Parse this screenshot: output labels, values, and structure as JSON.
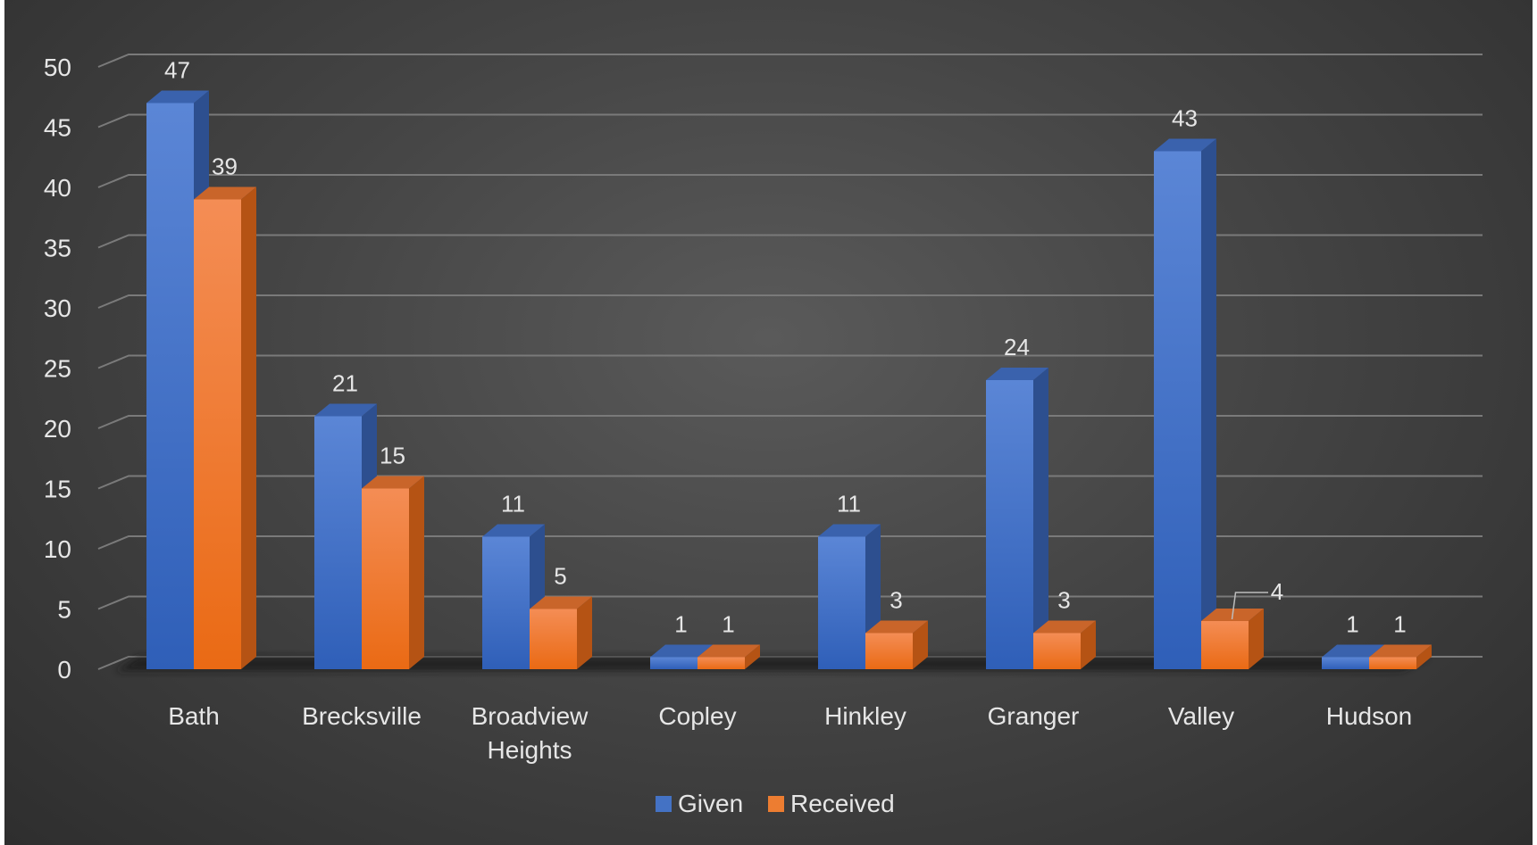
{
  "chart_data": {
    "type": "bar",
    "style": "3d-clustered-column",
    "title": "",
    "xlabel": "",
    "ylabel": "",
    "ylim": [
      0,
      50
    ],
    "yticks": [
      0,
      5,
      10,
      15,
      20,
      25,
      30,
      35,
      40,
      45,
      50
    ],
    "grid": true,
    "legend_position": "bottom",
    "categories": [
      [
        "Bath"
      ],
      [
        "Brecksville"
      ],
      [
        "Broadview",
        "Heights"
      ],
      [
        "Copley"
      ],
      [
        "Hinkley"
      ],
      [
        "Granger"
      ],
      [
        "Valley"
      ],
      [
        "Hudson"
      ]
    ],
    "series": [
      {
        "name": "Given",
        "color": "#4472C4",
        "values": [
          47,
          21,
          11,
          1,
          11,
          24,
          43,
          1
        ]
      },
      {
        "name": "Received",
        "color": "#ED7D31",
        "values": [
          39,
          15,
          5,
          1,
          3,
          3,
          4,
          1
        ]
      }
    ],
    "background": "#404040"
  }
}
